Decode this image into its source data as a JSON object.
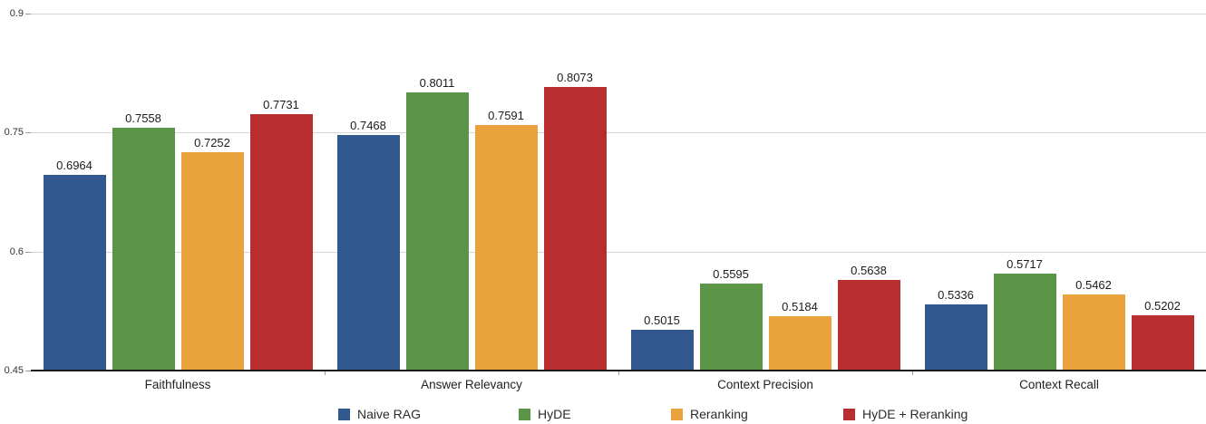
{
  "chart_data": {
    "type": "bar",
    "title": "",
    "xlabel": "",
    "ylabel": "",
    "categories": [
      "Faithfulness",
      "Answer Relevancy",
      "Context Precision",
      "Context Recall"
    ],
    "series": [
      {
        "name": "Naive RAG",
        "color": "#31588F",
        "values": [
          0.6964,
          0.7468,
          0.5015,
          0.5336
        ]
      },
      {
        "name": "HyDE",
        "color": "#5B9548",
        "values": [
          0.7558,
          0.8011,
          0.5595,
          0.5717
        ]
      },
      {
        "name": "Reranking",
        "color": "#E9A23C",
        "values": [
          0.7252,
          0.7591,
          0.5184,
          0.5462
        ]
      },
      {
        "name": "HyDE + Reranking",
        "color": "#B82E2E",
        "values": [
          0.7731,
          0.8073,
          0.5638,
          0.5202
        ]
      }
    ],
    "ylim": [
      0.45,
      0.9
    ],
    "yticks": [
      "0.45",
      "0.6",
      "0.75",
      "0.9"
    ],
    "grid": true,
    "value_labels": true,
    "value_decimals": 4,
    "legend_position": "bottom"
  },
  "colors": {
    "gridline": "#d6d6d6",
    "baseline": "#1a1a1a",
    "tick": "#9a9a9a",
    "value_text": "#1c1c1c",
    "axis_text": "#333333",
    "legend_text": "#2b2b2b"
  }
}
